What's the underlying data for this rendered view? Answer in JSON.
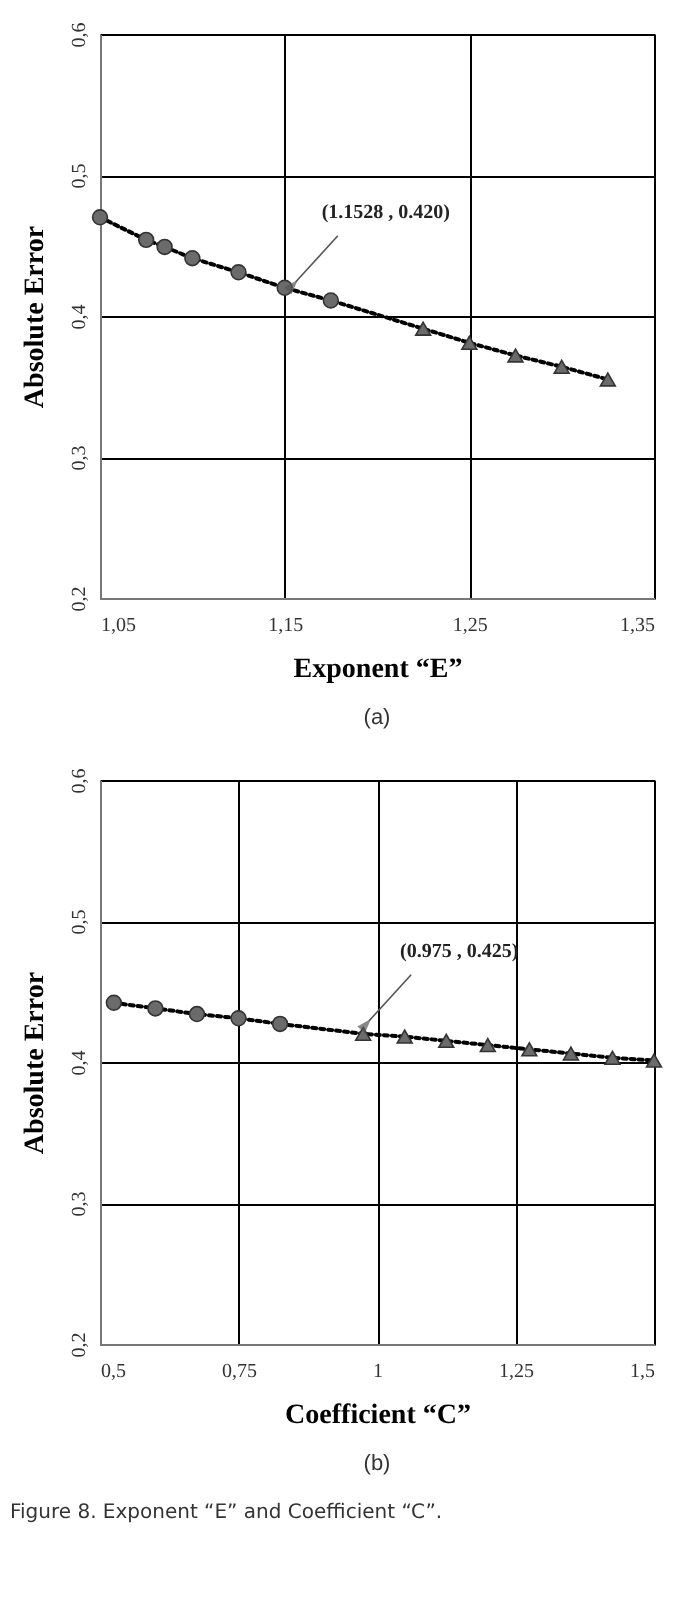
{
  "chart_data": [
    {
      "type": "scatter",
      "xlabel": "Exponent “E”",
      "ylabel": "Absolute Error",
      "xlim": [
        1.05,
        1.35
      ],
      "xticks": [
        {
          "value": 1.05,
          "label": "1,05"
        },
        {
          "value": 1.15,
          "label": "1,15"
        },
        {
          "value": 1.25,
          "label": "1,25"
        },
        {
          "value": 1.35,
          "label": "1,35"
        }
      ],
      "ylim": [
        0.2,
        0.6
      ],
      "yticks": [
        {
          "value": 0.2,
          "label": "0,2"
        },
        {
          "value": 0.3,
          "label": "0,3"
        },
        {
          "value": 0.4,
          "label": "0,4"
        },
        {
          "value": 0.5,
          "label": "0,5"
        },
        {
          "value": 0.6,
          "label": "0,6"
        }
      ],
      "grid": true,
      "series": [
        {
          "type": "line",
          "color": "#000000",
          "line_style": "dotted",
          "marker": "none",
          "x": [
            1.05,
            1.075,
            1.085,
            1.1,
            1.125,
            1.15,
            1.175,
            1.225,
            1.25,
            1.275,
            1.3,
            1.325
          ],
          "values": [
            0.47,
            0.454,
            0.449,
            0.441,
            0.431,
            0.42,
            0.411,
            0.391,
            0.381,
            0.372,
            0.364,
            0.355
          ]
        },
        {
          "type": "scatter",
          "color": "#6b6b6b",
          "marker": "circle",
          "x": [
            1.05,
            1.075,
            1.085,
            1.1,
            1.125,
            1.15,
            1.175
          ],
          "values": [
            0.47,
            0.454,
            0.449,
            0.441,
            0.431,
            0.42,
            0.411
          ]
        },
        {
          "type": "scatter",
          "color": "#6b6b6b",
          "marker": "triangle",
          "x": [
            1.225,
            1.25,
            1.275,
            1.3,
            1.325
          ],
          "values": [
            0.391,
            0.381,
            0.372,
            0.364,
            0.355
          ]
        }
      ],
      "annotations": [
        {
          "text": "(1.1528 , 0.420)",
          "x": 1.1528,
          "y": 0.42
        },
        "(a)"
      ]
    },
    {
      "type": "scatter",
      "xlabel": "Coefficient “C”",
      "ylabel": "Absolute Error",
      "xlim": [
        0.5,
        1.5
      ],
      "xticks": [
        {
          "value": 0.5,
          "label": "0,5"
        },
        {
          "value": 0.75,
          "label": "0,75"
        },
        1,
        {
          "value": 1.25,
          "label": "1,25"
        },
        {
          "value": 1.5,
          "label": "1,5"
        }
      ],
      "ylim": [
        0.2,
        0.6
      ],
      "yticks": [
        {
          "value": 0.2,
          "label": "0,2"
        },
        {
          "value": 0.3,
          "label": "0,3"
        },
        {
          "value": 0.4,
          "label": "0,4"
        },
        {
          "value": 0.5,
          "label": "0,5"
        },
        {
          "value": 0.6,
          "label": "0,6"
        }
      ],
      "grid": true,
      "series": [
        {
          "type": "line",
          "color": "#000000",
          "line_style": "dotted",
          "marker": "none",
          "x": [
            0.525,
            0.6,
            0.675,
            0.75,
            0.825,
            0.975,
            1.05,
            1.125,
            1.2,
            1.275,
            1.35,
            1.425,
            1.5
          ],
          "values": [
            0.442,
            0.438,
            0.434,
            0.431,
            0.427,
            0.42,
            0.418,
            0.415,
            0.412,
            0.409,
            0.406,
            0.403,
            0.401
          ]
        },
        {
          "type": "scatter",
          "color": "#6b6b6b",
          "marker": "circle",
          "x": [
            0.525,
            0.6,
            0.675,
            0.75,
            0.825
          ],
          "values": [
            0.442,
            0.438,
            0.434,
            0.431,
            0.427
          ]
        },
        {
          "type": "scatter",
          "color": "#6b6b6b",
          "marker": "triangle",
          "x": [
            0.975,
            1.05,
            1.125,
            1.2,
            1.275,
            1.35,
            1.425,
            1.5
          ],
          "values": [
            0.42,
            0.418,
            0.415,
            0.412,
            0.409,
            0.406,
            0.403,
            0.401
          ]
        }
      ],
      "annotations": [
        {
          "text": "(0.975 , 0.425)",
          "x": 0.975,
          "y": 0.425
        },
        "(b)",
        "Figure 8.   Exponent “E” and Coefficient “C”."
      ]
    }
  ]
}
